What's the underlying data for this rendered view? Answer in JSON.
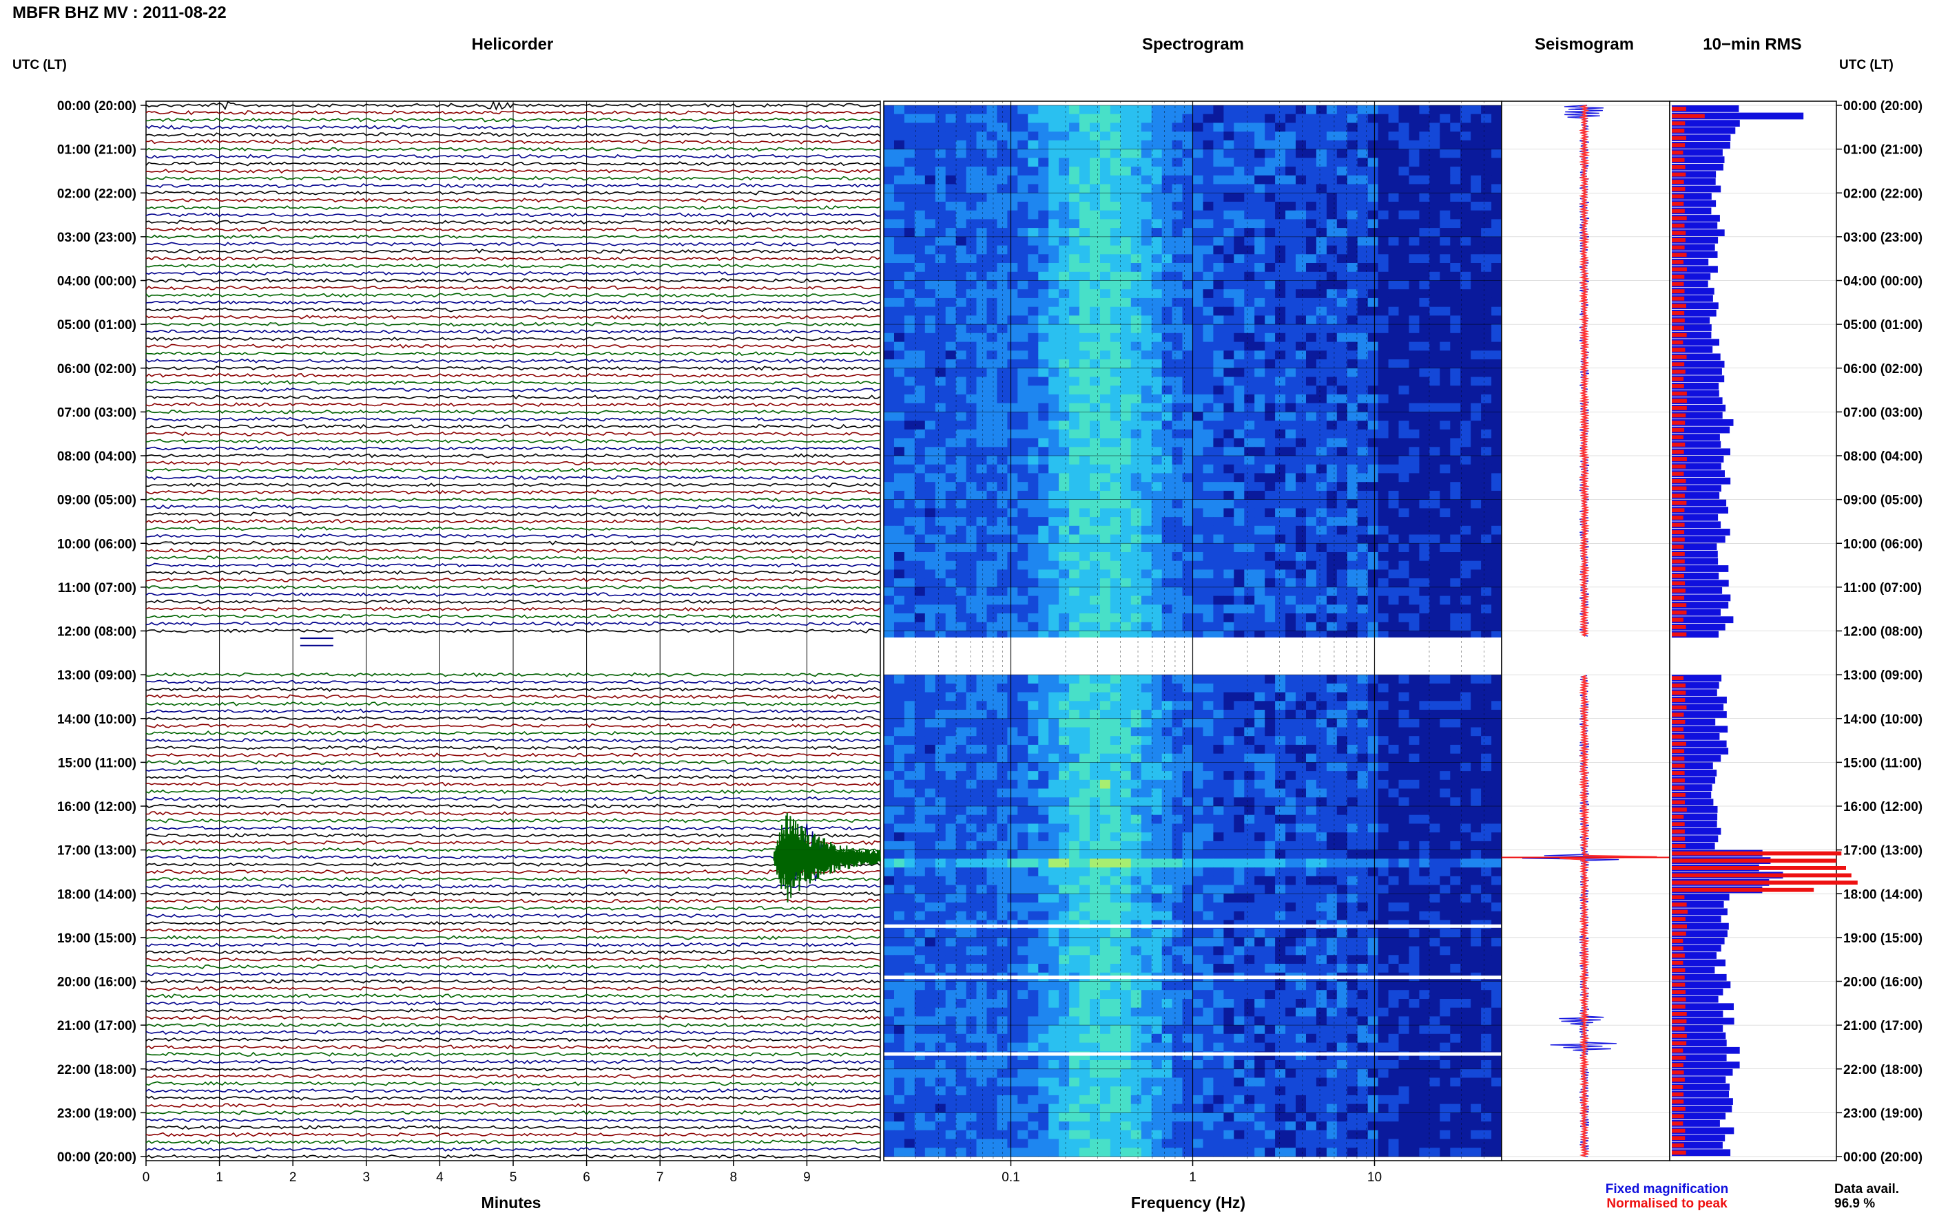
{
  "header": {
    "title": "MBFR BHZ MV : 2011-08-22",
    "tz_label_left": "UTC (LT)",
    "tz_label_right": "UTC (LT)"
  },
  "panels": {
    "helicorder": "Helicorder",
    "spectrogram": "Spectrogram",
    "seismogram": "Seismogram",
    "rms": "10−min RMS"
  },
  "legend": {
    "fixed": "Fixed magnification",
    "fixed_color": "#1010dd",
    "normalised": "Normalised to peak",
    "normalised_color": "#ee1111"
  },
  "availability": {
    "label": "Data avail.",
    "value": "96.9 %"
  },
  "colors": {
    "trace_cycle": [
      "#000000",
      "#8b0000",
      "#006400",
      "#00008b"
    ],
    "rms_fixed": "#1010dd",
    "rms_normalised": "#ee1111",
    "seismo_env": "#1a1ae0",
    "seismo_norm": "#ff3333"
  },
  "chart_data": [
    {
      "type": "line",
      "name": "helicorder",
      "title": "Helicorder",
      "xlabel": "Minutes",
      "xlim": [
        0,
        10
      ],
      "xticks": [
        "0",
        "1",
        "2",
        "3",
        "4",
        "5",
        "6",
        "7",
        "8",
        "9"
      ],
      "rows_per_hour": 6,
      "hour_labels": [
        "00:00 (20:00)",
        "01:00 (21:00)",
        "02:00 (22:00)",
        "03:00 (23:00)",
        "04:00 (00:00)",
        "05:00 (01:00)",
        "06:00 (02:00)",
        "07:00 (03:00)",
        "08:00 (04:00)",
        "09:00 (05:00)",
        "10:00 (06:00)",
        "11:00 (07:00)",
        "12:00 (08:00)",
        "13:00 (09:00)",
        "14:00 (10:00)",
        "15:00 (11:00)",
        "16:00 (12:00)",
        "17:00 (13:00)",
        "18:00 (14:00)",
        "19:00 (15:00)",
        "20:00 (16:00)",
        "21:00 (17:00)",
        "22:00 (18:00)",
        "23:00 (19:00)",
        "00:00 (20:00)"
      ],
      "data_gap": {
        "start_hour": 12.15,
        "end_hour": 13.0
      },
      "events": [
        {
          "time_hour": 0.0,
          "start_min": 0.9,
          "duration_min": 0.5,
          "amplitude": 0.8
        },
        {
          "time_hour": 0.0,
          "start_min": 4.6,
          "duration_min": 0.7,
          "amplitude": 1.0
        },
        {
          "time_hour": 17.17,
          "start_min": 8.55,
          "duration_min": 1.45,
          "amplitude": 9.0
        }
      ]
    },
    {
      "type": "heatmap",
      "name": "spectrogram",
      "title": "Spectrogram",
      "xlabel": "Frequency (Hz)",
      "xscale": "log",
      "xlim": [
        0.02,
        50
      ],
      "xticks": [
        "0.1",
        "1",
        "10"
      ],
      "colormap": [
        "#0a1a9c",
        "#1448d8",
        "#1e86f0",
        "#2ac0f0",
        "#48e0c8",
        "#a8ee70",
        "#ffff00"
      ]
    },
    {
      "type": "line",
      "name": "seismogram",
      "title": "Seismogram",
      "series": [
        {
          "name": "Fixed magnification",
          "color": "#1010dd"
        },
        {
          "name": "Normalised to peak",
          "color": "#ee1111"
        }
      ],
      "peak_time_hour": 17.17
    },
    {
      "type": "bar",
      "name": "rms_10min",
      "title": "10−min RMS",
      "series": [
        {
          "name": "Fixed magnification",
          "color": "#1010dd",
          "hourly_values": [
            0.38,
            0.3,
            0.28,
            0.25,
            0.25,
            0.28,
            0.3,
            0.33,
            0.33,
            0.31,
            0.31,
            0.33,
            0.31,
            0.3,
            0.31,
            0.28,
            0.28,
            0.6,
            0.31,
            0.3,
            0.33,
            0.36,
            0.33,
            0.33
          ]
        },
        {
          "name": "Normalised to peak",
          "color": "#ee1111",
          "hourly_values": [
            0.09,
            0.08,
            0.08,
            0.08,
            0.08,
            0.08,
            0.08,
            0.08,
            0.08,
            0.08,
            0.08,
            0.08,
            0.08,
            0.08,
            0.08,
            0.08,
            0.08,
            1.0,
            0.09,
            0.08,
            0.08,
            0.08,
            0.08,
            0.08
          ]
        }
      ],
      "rms_peak": {
        "time_hour": 17.17,
        "fixed": 0.6,
        "normalised": 1.0
      },
      "rms_first_row": {
        "fixed": 0.8,
        "normalised": 0.2
      }
    }
  ]
}
